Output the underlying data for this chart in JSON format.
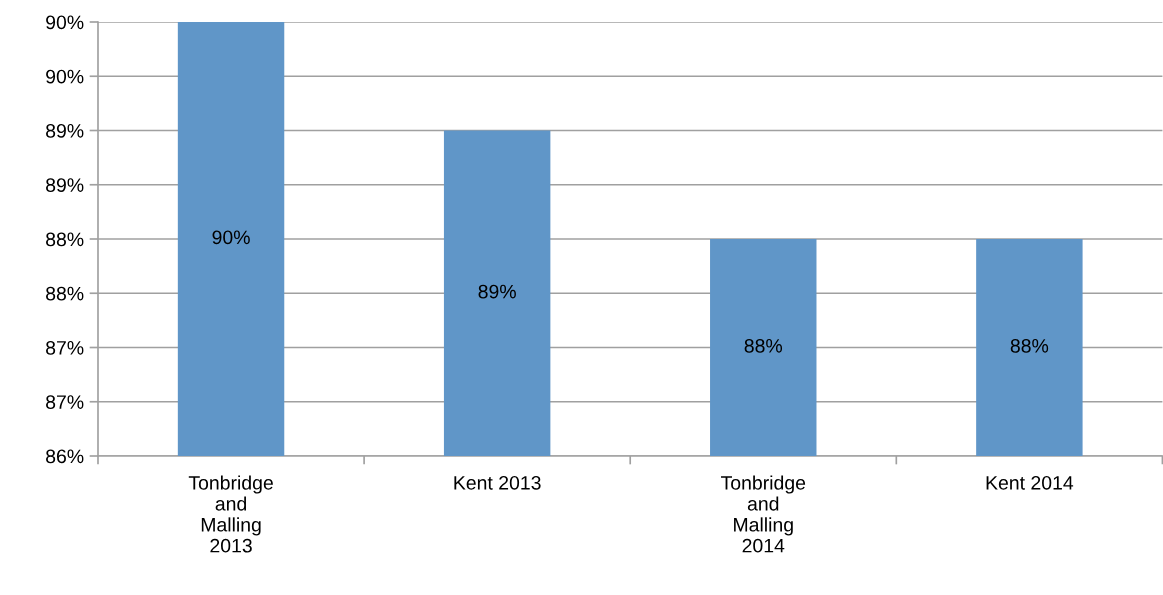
{
  "chart_data": {
    "type": "bar",
    "categories": [
      "Tonbridge and Malling 2013",
      "Kent 2013",
      "Tonbridge and Malling 2014",
      "Kent 2014"
    ],
    "values": [
      90,
      89,
      88,
      88
    ],
    "color": "#6096c8",
    "value_labels": [
      "90%",
      "89%",
      "88%",
      "88%"
    ],
    "ylim": [
      86,
      90
    ],
    "yticks": [
      {
        "value": 86,
        "label": "86%"
      },
      {
        "value": 86.5,
        "label": "87%"
      },
      {
        "value": 87,
        "label": "87%"
      },
      {
        "value": 87.5,
        "label": "88%"
      },
      {
        "value": 88,
        "label": "88%"
      },
      {
        "value": 88.5,
        "label": "89%"
      },
      {
        "value": 89,
        "label": "89%"
      },
      {
        "value": 89.5,
        "label": "90%"
      },
      {
        "value": 90,
        "label": "90%"
      }
    ],
    "grid": "y"
  }
}
